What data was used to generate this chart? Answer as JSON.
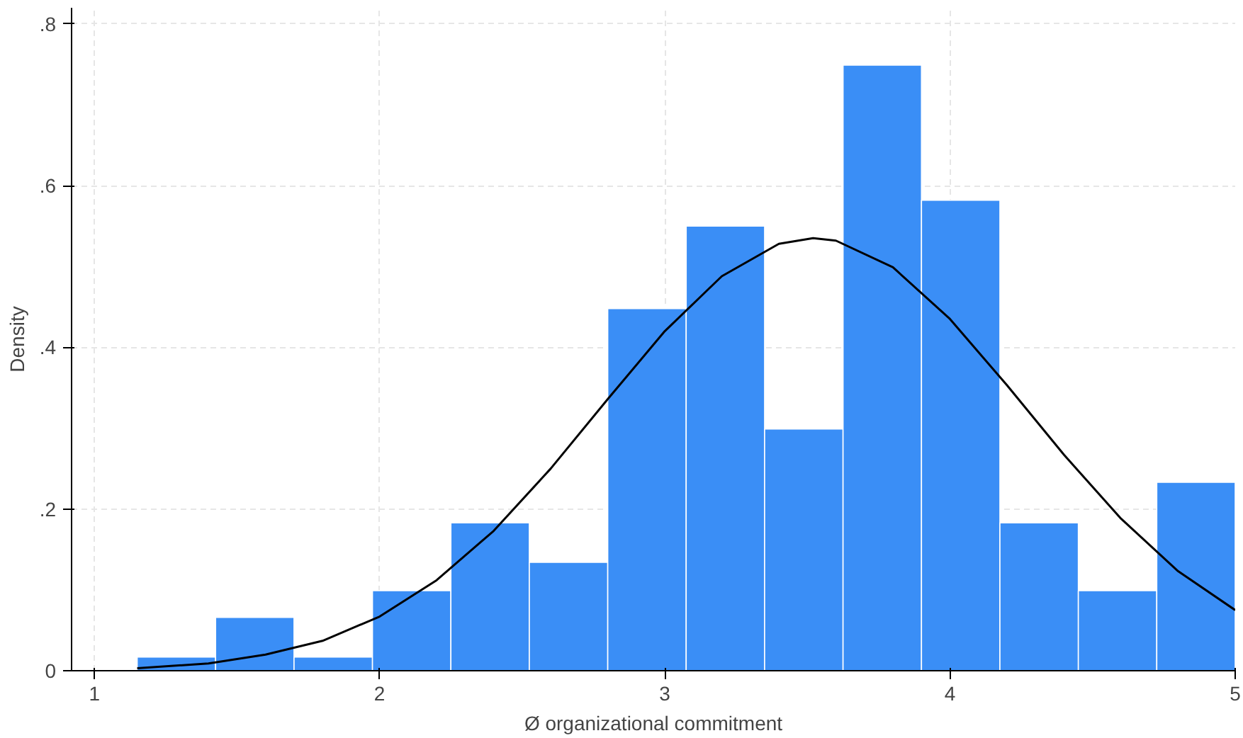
{
  "chart_data": {
    "type": "histogram",
    "xlabel": "Ø organizational commitment",
    "ylabel": "Density",
    "xlim": [
      0.92,
      5
    ],
    "ylim": [
      0,
      0.82
    ],
    "xticks": [
      1,
      2,
      3,
      4,
      5
    ],
    "yticks": [
      0,
      {
        "value": 0.2,
        "label": ".2"
      },
      {
        "value": 0.4,
        "label": ".4"
      },
      {
        "value": 0.6,
        "label": ".6"
      },
      {
        "value": 0.8,
        "label": ".8"
      }
    ],
    "grid": true,
    "series": [
      {
        "color": "#3a8ef6",
        "bins": [
          1.15,
          1.425,
          1.7,
          1.975,
          2.25,
          2.525,
          2.8,
          3.075,
          3.35,
          3.625,
          3.9,
          4.175,
          4.45,
          4.725,
          5.0
        ],
        "values": [
          0.017,
          0.066,
          0.017,
          0.099,
          0.183,
          0.134,
          0.448,
          0.55,
          0.299,
          0.749,
          0.582,
          0.183,
          0.099,
          0.233
        ]
      },
      {
        "type": "line",
        "color": "#000000",
        "x": [
          1.15,
          1.4,
          1.6,
          1.8,
          2.0,
          2.2,
          2.4,
          2.6,
          2.8,
          3.0,
          3.2,
          3.4,
          3.52,
          3.6,
          3.8,
          4.0,
          4.2,
          4.4,
          4.6,
          4.8,
          5.0
        ],
        "values": [
          0.003,
          0.009,
          0.02,
          0.037,
          0.067,
          0.112,
          0.173,
          0.25,
          0.336,
          0.42,
          0.488,
          0.528,
          0.535,
          0.532,
          0.499,
          0.435,
          0.353,
          0.267,
          0.188,
          0.123,
          0.075
        ]
      }
    ]
  }
}
